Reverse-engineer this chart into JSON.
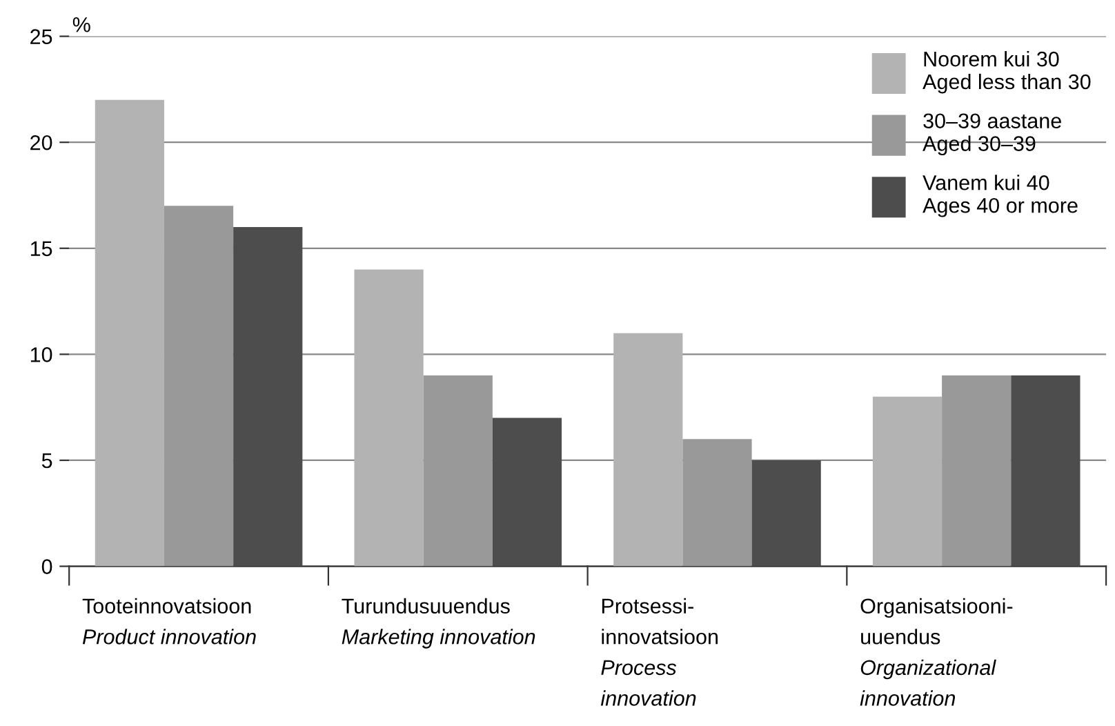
{
  "chart_data": {
    "type": "bar",
    "ylabel": "%",
    "categories": [
      "Tooteinnovatsioon\nProduct innovation",
      "Turundusuuendus\nMarketing innovation",
      "Protsessi-\ninnovatsioon\nProcess\ninnovation",
      "Organisatsiooni-\nuuendus\nOrganizational\ninnovation"
    ],
    "series": [
      {
        "name": "Noorem kui 30\nAged less than 30",
        "color": "#b3b3b3",
        "values": [
          22,
          14,
          11,
          8
        ]
      },
      {
        "name": "30–39 aastane\nAged 30–39",
        "color": "#999999",
        "values": [
          17,
          9,
          6,
          9
        ]
      },
      {
        "name": "Vanem kui 40\nAges 40 or more",
        "color": "#4d4d4d",
        "values": [
          16,
          7,
          5,
          9
        ]
      }
    ],
    "ylim": [
      0,
      25
    ],
    "yticks": [
      0,
      5,
      10,
      15,
      20,
      25
    ],
    "grid": "y",
    "legend": "top right"
  }
}
